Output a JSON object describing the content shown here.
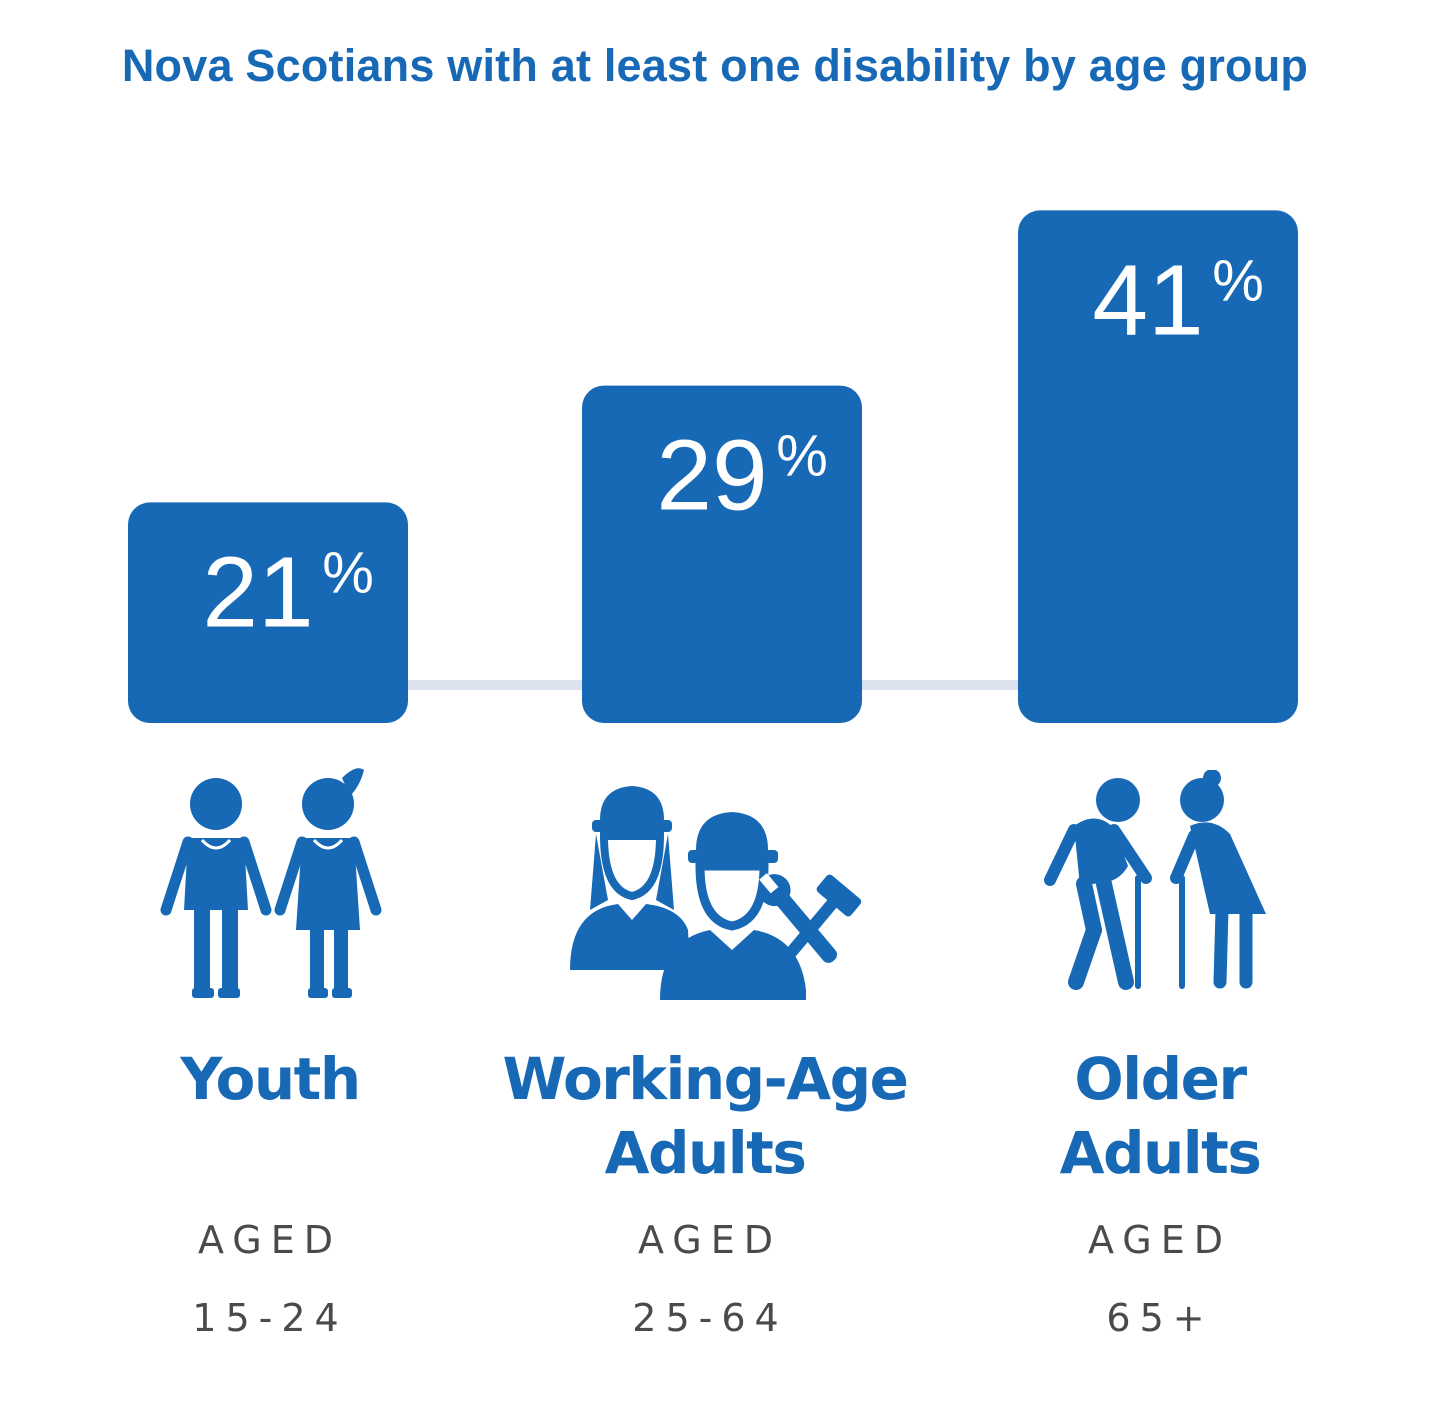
{
  "title": "Nova Scotians with at least one disability by age group",
  "colors": {
    "bar": "#1769b6",
    "connector": "#dbe2ee",
    "text_dark": "#4a4a4a"
  },
  "chart_data": {
    "type": "bar",
    "title": "Nova Scotians with at least one disability by age group",
    "categories": [
      "Youth",
      "Working-Age Adults",
      "Older Adults"
    ],
    "values": [
      21,
      29,
      41
    ],
    "unit": "%",
    "value_labels": [
      "21",
      "29",
      "41"
    ]
  },
  "groups": [
    {
      "label_line1": "Youth",
      "label_line2": "",
      "aged": "AGED",
      "range": "15-24",
      "icon": "youth-pair-icon"
    },
    {
      "label_line1": "Working-Age",
      "label_line2": "Adults",
      "aged": "AGED",
      "range": "25-64",
      "icon": "workers-hardhat-icon"
    },
    {
      "label_line1": "Older",
      "label_line2": "Adults",
      "aged": "AGED",
      "range": "65+",
      "icon": "seniors-cane-icon"
    }
  ]
}
